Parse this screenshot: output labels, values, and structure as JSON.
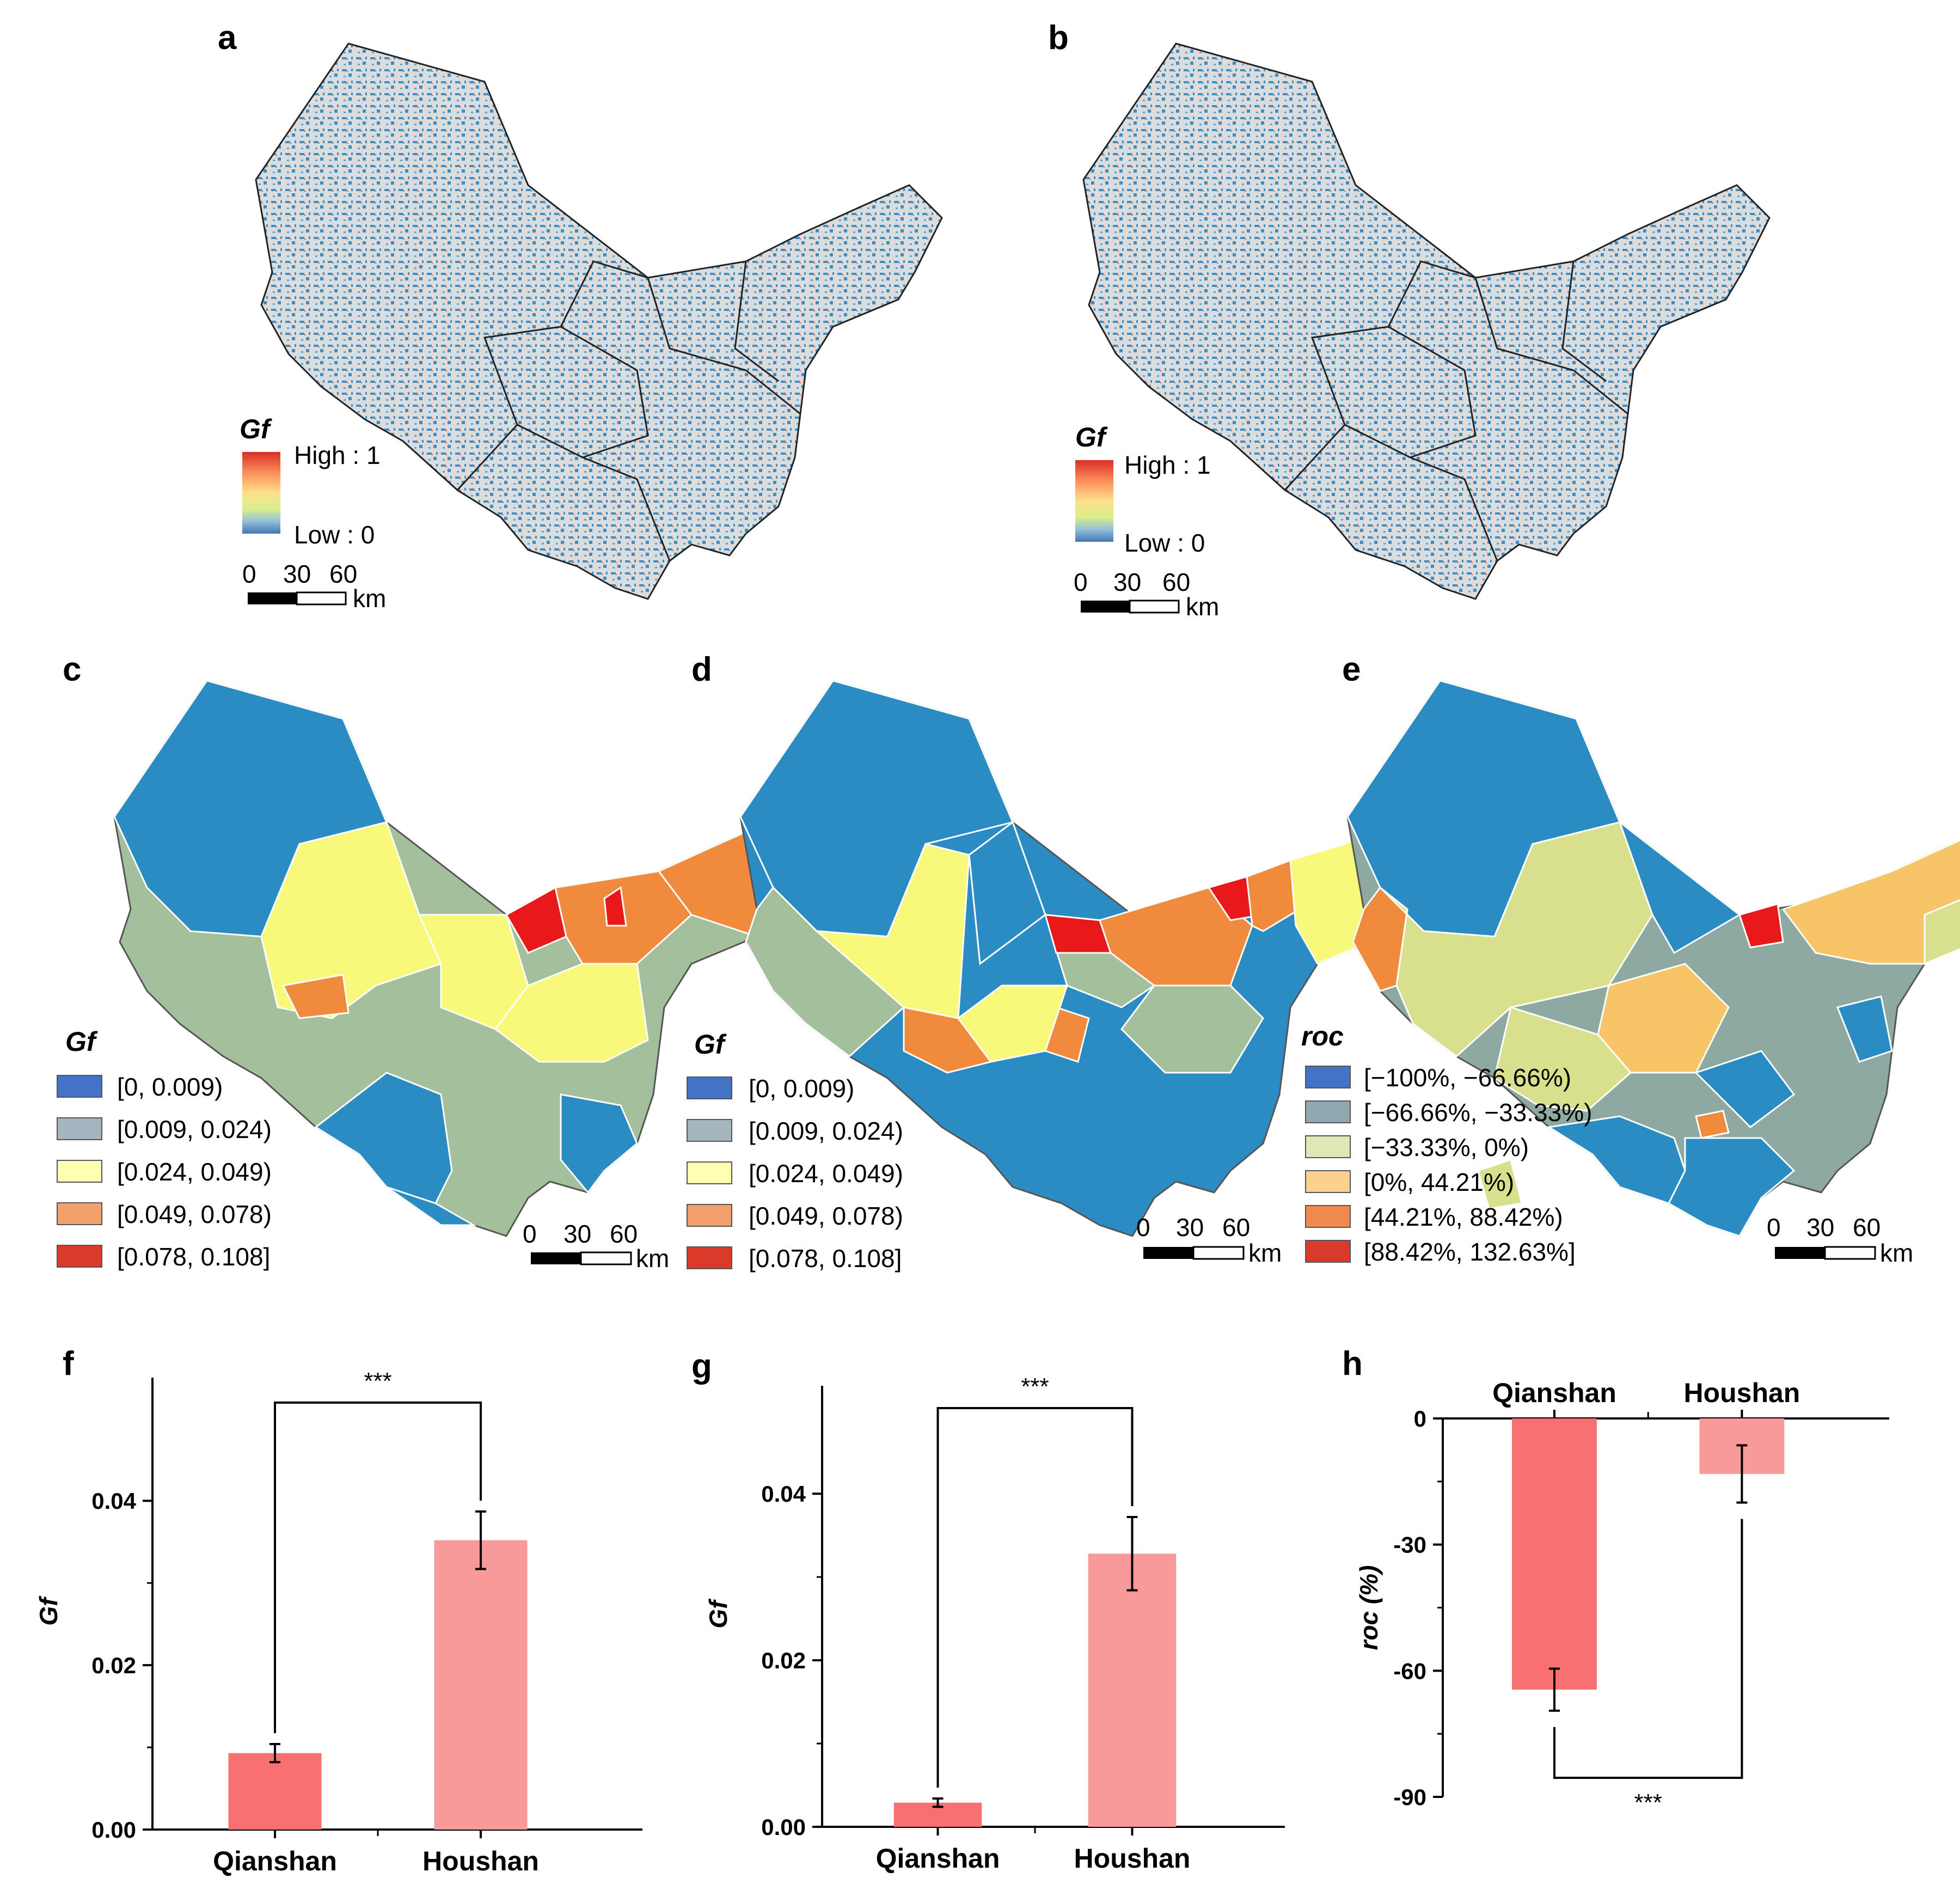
{
  "panels": {
    "a": "a",
    "b": "b",
    "c": "c",
    "d": "d",
    "e": "e",
    "f": "f",
    "g": "g",
    "h": "h"
  },
  "continuous_legend": {
    "title": "Gf",
    "high": "High : 1",
    "low": "Low : 0",
    "colors": [
      "#d73027",
      "#fc8d59",
      "#fee08b",
      "#d9ef8b",
      "#91bfdb",
      "#4575b4"
    ]
  },
  "scalebar": {
    "ticks": [
      "0",
      "30",
      "60"
    ],
    "unit": "km"
  },
  "gf_legend": {
    "title": "Gf",
    "classes": [
      {
        "label": "[0, 0.009)",
        "color": "#4472c4"
      },
      {
        "label": "[0.009, 0.024)",
        "color": "#a5b5c0"
      },
      {
        "label": "[0.024, 0.049)",
        "color": "#ffffb3"
      },
      {
        "label": "[0.049, 0.078)",
        "color": "#f4a06b"
      },
      {
        "label": "[0.078, 0.108]",
        "color": "#d93a2b"
      }
    ]
  },
  "roc_legend": {
    "title": "roc",
    "classes": [
      {
        "label": "[−100%, −66.66%)",
        "color": "#4472c4"
      },
      {
        "label": "[−66.66%, −33.33%)",
        "color": "#8fa8b2"
      },
      {
        "label": "[−33.33%, 0%)",
        "color": "#dfe8b5"
      },
      {
        "label": "[0%, 44.21%)",
        "color": "#fcd08f"
      },
      {
        "label": "[44.21%, 88.42%)",
        "color": "#f2894f"
      },
      {
        "label": "[88.42%, 132.63%]",
        "color": "#d93a2b"
      }
    ]
  },
  "map_colors": {
    "background": "#dcdcdc",
    "pixel_low": "#3a8fc8",
    "pixel_high": "#d9553a",
    "blue": "#2b8cc4",
    "sage": "#a3bf9b",
    "yellow": "#f8f87a",
    "orange": "#f08a3c",
    "red": "#e8191b",
    "teal": "#8ea8a2",
    "lightgreen": "#d8e08c",
    "lightorange": "#f7c468"
  },
  "chart_data": [
    {
      "panel": "f",
      "type": "bar",
      "categories": [
        "Qianshan",
        "Houshan"
      ],
      "values": [
        0.0093,
        0.0352
      ],
      "errors": [
        0.0011,
        0.0035
      ],
      "ylabel": "Gf",
      "ylim": [
        0,
        0.053
      ],
      "yticks": [
        0.0,
        0.02,
        0.04
      ],
      "yticklabels": [
        "0.00",
        "0.02",
        "0.04"
      ],
      "significance": "***",
      "colors": [
        "#f87171",
        "#f99a9a"
      ]
    },
    {
      "panel": "g",
      "type": "bar",
      "categories": [
        "Qianshan",
        "Houshan"
      ],
      "values": [
        0.0029,
        0.0328
      ],
      "errors": [
        0.0005,
        0.0044
      ],
      "ylabel": "Gf",
      "ylim": [
        0,
        0.051
      ],
      "yticks": [
        0.0,
        0.02,
        0.04
      ],
      "yticklabels": [
        "0.00",
        "0.02",
        "0.04"
      ],
      "significance": "***",
      "colors": [
        "#f87171",
        "#f99a9a"
      ]
    },
    {
      "panel": "h",
      "type": "bar",
      "categories": [
        "Qianshan",
        "Houshan"
      ],
      "values": [
        -64.5,
        -13.2
      ],
      "errors": [
        5.0,
        6.8
      ],
      "ylabel": "roc (%)",
      "ylim": [
        -90,
        0
      ],
      "yticks": [
        0,
        -30,
        -60,
        -90
      ],
      "yticklabels": [
        "0",
        "-30",
        "-60",
        "-90"
      ],
      "significance": "***",
      "colors": [
        "#f87171",
        "#f99a9a"
      ]
    }
  ]
}
